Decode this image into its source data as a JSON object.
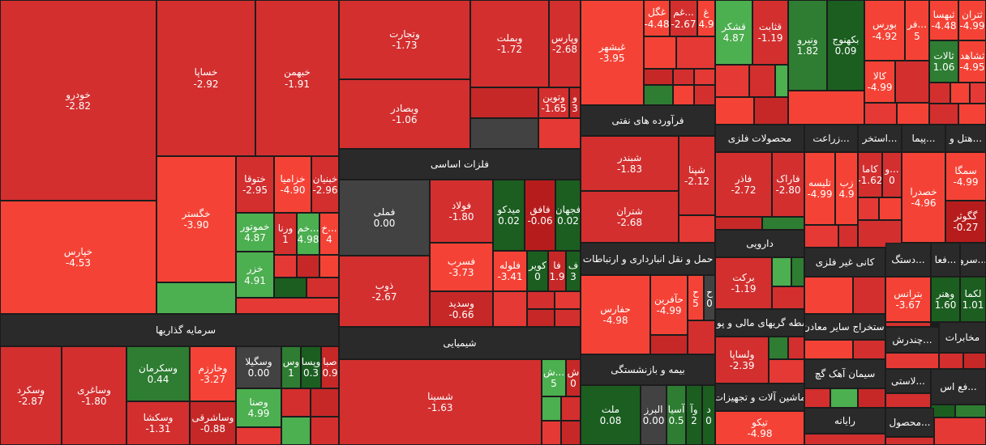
{
  "colors": {
    "deep_red": "#c62828",
    "red": "#d32f2f",
    "light_red": "#f44336",
    "pale_red": "#e53935",
    "green": "#4caf50",
    "dark_green": "#1b5e20",
    "mid_green": "#2e7d32",
    "neutral": "#424242",
    "header": "#2a2a2a"
  },
  "sectors": [
    {
      "id": "sec-investment",
      "label": "سرمایه گذاریها"
    },
    {
      "id": "sec-basic-metals",
      "label": "فلزات اساسی"
    },
    {
      "id": "sec-chemical",
      "label": "شیمیایی"
    },
    {
      "id": "sec-oil-products",
      "label": "فرآورده های نفتی"
    },
    {
      "id": "sec-transport",
      "label": "حمل و نقل انبارداری و ارتباطات"
    },
    {
      "id": "sec-insurance",
      "label": "بیمه و بازنشستگی"
    },
    {
      "id": "sec-pharma",
      "label": "دارویی"
    },
    {
      "id": "sec-finance",
      "label": "سطه گریهای مالی و پول"
    },
    {
      "id": "sec-machinery",
      "label": "ماشین آلات و تجهیزات"
    },
    {
      "id": "sec-metal-products",
      "label": "محصولات فلزی"
    },
    {
      "id": "sec-agri",
      "label": "زراعت..."
    },
    {
      "id": "sec-extraction",
      "label": "استخر..."
    },
    {
      "id": "sec-contract",
      "label": "پیما..."
    },
    {
      "id": "sec-hotel",
      "label": "هتل و..."
    },
    {
      "id": "sec-nonmetal",
      "label": "کانی غیر فلزی"
    },
    {
      "id": "sec-handicraft",
      "label": "دستگ..."
    },
    {
      "id": "sec-activities",
      "label": "فعا..."
    },
    {
      "id": "sec-services",
      "label": "سرو..."
    },
    {
      "id": "sec-other-mining",
      "label": "استخراج سایر معادن"
    },
    {
      "id": "sec-cement",
      "label": "سیمان آهک گچ"
    },
    {
      "id": "sec-multi",
      "label": "چندرش..."
    },
    {
      "id": "sec-telecom",
      "label": "مخابرات"
    },
    {
      "id": "sec-computer",
      "label": "رایانه"
    },
    {
      "id": "sec-tire",
      "label": "لاستی..."
    },
    {
      "id": "sec-fe",
      "label": "فع اس..."
    },
    {
      "id": "sec-product",
      "label": "محصول..."
    }
  ],
  "tiles": [
    {
      "id": "khodro",
      "name": "خودرو",
      "value": "-2.82",
      "c": "red"
    },
    {
      "id": "khesapa",
      "name": "خساپا",
      "value": "-2.92",
      "c": "red"
    },
    {
      "id": "khbahman",
      "name": "خبهمن",
      "value": "-1.91",
      "c": "red"
    },
    {
      "id": "khepars",
      "name": "خپارس",
      "value": "-4.53",
      "c": "light_red"
    },
    {
      "id": "khgostar",
      "name": "خگستر",
      "value": "-3.90",
      "c": "light_red"
    },
    {
      "id": "khtoga",
      "name": "ختوقا",
      "value": "-2.95",
      "c": "red"
    },
    {
      "id": "khzamia",
      "name": "خزامیا",
      "value": "-4.90",
      "c": "light_red"
    },
    {
      "id": "khbonyan",
      "name": "خبنیان",
      "value": "-2.96",
      "c": "red"
    },
    {
      "id": "khmotor",
      "name": "خموتور",
      "value": "4.87",
      "c": "green"
    },
    {
      "id": "varna",
      "name": "ورنا",
      "value": "1",
      "c": "red"
    },
    {
      "id": "khm",
      "name": "خم...",
      "value": "4.98",
      "c": "green"
    },
    {
      "id": "kh2",
      "name": "خ...",
      "value": "4",
      "c": "light_red"
    },
    {
      "id": "khzar",
      "name": "خزر",
      "value": "4.91",
      "c": "green"
    },
    {
      "id": "vtejarat",
      "name": "وتجارت",
      "value": "-1.73",
      "c": "red"
    },
    {
      "id": "vbemellat",
      "name": "وبملت",
      "value": "-1.72",
      "c": "red"
    },
    {
      "id": "vpars",
      "name": "وپارس",
      "value": "-2.68",
      "c": "red"
    },
    {
      "id": "vbsader",
      "name": "وبصادر",
      "value": "-1.06",
      "c": "red"
    },
    {
      "id": "vtoyan",
      "name": "وتوین",
      "value": "-1.65",
      "c": "red"
    },
    {
      "id": "vsmall",
      "name": "و",
      "value": "3",
      "c": "red"
    },
    {
      "id": "gheghal",
      "name": "غگل",
      "value": "-4.48",
      "c": "light_red"
    },
    {
      "id": "gham",
      "name": "غم...",
      "value": "-2.67",
      "c": "red"
    },
    {
      "id": "ghsmall",
      "name": "غ",
      "value": "4.9",
      "c": "light_red"
    },
    {
      "id": "ghbeshar",
      "name": "غبشهر",
      "value": "-3.95",
      "c": "light_red"
    },
    {
      "id": "ghshekar",
      "name": "قشکر",
      "value": "4.87",
      "c": "green"
    },
    {
      "id": "gsabet",
      "name": "قثابت",
      "value": "-1.19",
      "c": "red"
    },
    {
      "id": "vnirou",
      "name": "ونیرو",
      "value": "1.82",
      "c": "mid_green"
    },
    {
      "id": "bkahnouj",
      "name": "بکهنوج",
      "value": "0.09",
      "c": "dark_green"
    },
    {
      "id": "bours",
      "name": "بورس",
      "value": "-4.92",
      "c": "light_red"
    },
    {
      "id": "far",
      "name": "فر...",
      "value": "5",
      "c": "light_red"
    },
    {
      "id": "tbahsa",
      "name": "ثبهسا",
      "value": "-4.48",
      "c": "light_red"
    },
    {
      "id": "seran",
      "name": "ثتران",
      "value": "-4.99",
      "c": "light_red"
    },
    {
      "id": "salat",
      "name": "ثالات",
      "value": "1.06",
      "c": "mid_green"
    },
    {
      "id": "shahed",
      "name": "ثشاهد",
      "value": "-4.95",
      "c": "light_red"
    },
    {
      "id": "kala",
      "name": "کالا",
      "value": "-4.99",
      "c": "light_red"
    },
    {
      "id": "sheb",
      "name": "شبندر",
      "value": "-1.83",
      "c": "red"
    },
    {
      "id": "shpna",
      "name": "شپنا",
      "value": "-2.12",
      "c": "red"
    },
    {
      "id": "shtran",
      "name": "شتران",
      "value": "-2.68",
      "c": "red"
    },
    {
      "id": "foolad",
      "name": "فولاد",
      "value": "-1.80",
      "c": "red"
    },
    {
      "id": "meedko",
      "name": "میدکو",
      "value": "0.02",
      "c": "dark_green"
    },
    {
      "id": "fanfagh",
      "name": "فافق",
      "value": "-0.06",
      "c": "deep_red"
    },
    {
      "id": "fjahan",
      "name": "فجهان",
      "value": "0.02",
      "c": "dark_green"
    },
    {
      "id": "fameli",
      "name": "فملی",
      "value": "0.00",
      "c": "neutral"
    },
    {
      "id": "fasrb",
      "name": "فسرب",
      "value": "-3.73",
      "c": "light_red"
    },
    {
      "id": "folouleh",
      "name": "فلوله",
      "value": "-3.41",
      "c": "light_red"
    },
    {
      "id": "kavir",
      "name": "کویر",
      "value": "0",
      "c": "dark_green"
    },
    {
      "id": "fa",
      "name": "فا",
      "value": "1.9",
      "c": "mid_green"
    },
    {
      "id": "f3",
      "name": "ف",
      "value": "3",
      "c": "dark_green"
    },
    {
      "id": "zob",
      "name": "ذوب",
      "value": "-2.67",
      "c": "red"
    },
    {
      "id": "vsadid",
      "name": "وسدید",
      "value": "-0.66",
      "c": "deep_red"
    },
    {
      "id": "shasina",
      "name": "شسینا",
      "value": "-1.63",
      "c": "red"
    },
    {
      "id": "shsh",
      "name": "ش...",
      "value": "5",
      "c": "green"
    },
    {
      "id": "sh0",
      "name": "ش",
      "value": "0",
      "c": "deep_red"
    },
    {
      "id": "hafars",
      "name": "حفارس",
      "value": "-4.98",
      "c": "light_red"
    },
    {
      "id": "hamfarin",
      "name": "حآفرین",
      "value": "-4.99",
      "c": "light_red"
    },
    {
      "id": "h5",
      "name": "ح",
      "value": "5",
      "c": "light_red"
    },
    {
      "id": "h0",
      "name": "ح",
      "value": "0",
      "c": "neutral"
    },
    {
      "id": "mellat",
      "name": "ملت",
      "value": "0.08",
      "c": "dark_green"
    },
    {
      "id": "alborz",
      "name": "البرز",
      "value": "0.00",
      "c": "neutral"
    },
    {
      "id": "asia",
      "name": "آسیا",
      "value": "0.5",
      "c": "mid_green"
    },
    {
      "id": "va2",
      "name": "وآ",
      "value": "2",
      "c": "dark_green"
    },
    {
      "id": "d0",
      "name": "د",
      "value": "0",
      "c": "dark_green"
    },
    {
      "id": "vskord",
      "name": "وسکرد",
      "value": "-2.87",
      "c": "red"
    },
    {
      "id": "vsaghari",
      "name": "وساغری",
      "value": "-1.80",
      "c": "red"
    },
    {
      "id": "vskerman",
      "name": "وسکرمان",
      "value": "0.44",
      "c": "dark_green"
    },
    {
      "id": "vkharzam",
      "name": "وخارزم",
      "value": "-3.27",
      "c": "light_red"
    },
    {
      "id": "vsgila",
      "name": "وسگیلا",
      "value": "0.00",
      "c": "neutral"
    },
    {
      "id": "vs1",
      "name": "وس",
      "value": "1",
      "c": "dark_green"
    },
    {
      "id": "vpsa",
      "name": "وپسا",
      "value": "0.3",
      "c": "dark_green"
    },
    {
      "id": "sba",
      "name": "صبا",
      "value": "0.9",
      "c": "light_red"
    },
    {
      "id": "vskasha",
      "name": "وسکشا",
      "value": "-1.31",
      "c": "red"
    },
    {
      "id": "vsasharghi",
      "name": "وساشرقی",
      "value": "-0.88",
      "c": "deep_red"
    },
    {
      "id": "vsana",
      "name": "وصنا",
      "value": "4.99",
      "c": "green"
    },
    {
      "id": "barkat",
      "name": "برکت",
      "value": "-1.19",
      "c": "red"
    },
    {
      "id": "vsalpa",
      "name": "ولساپا",
      "value": "-2.39",
      "c": "red"
    },
    {
      "id": "tikko",
      "name": "تیکو",
      "value": "-4.98",
      "c": "light_red"
    },
    {
      "id": "fazar",
      "name": "فاذر",
      "value": "-2.72",
      "c": "red"
    },
    {
      "id": "farak",
      "name": "فاراک",
      "value": "-2.80",
      "c": "red"
    },
    {
      "id": "talise",
      "name": "تلیسه",
      "value": "-4.99",
      "c": "light_red"
    },
    {
      "id": "zab",
      "name": "زب",
      "value": "4.9",
      "c": "light_red"
    },
    {
      "id": "kama",
      "name": "کاما",
      "value": "-1.62",
      "c": "red"
    },
    {
      "id": "v0",
      "name": "و...",
      "value": "0",
      "c": "red"
    },
    {
      "id": "khsadra",
      "name": "خصدرا",
      "value": "-4.96",
      "c": "light_red"
    },
    {
      "id": "semga",
      "name": "سمگا",
      "value": "-4.99",
      "c": "light_red"
    },
    {
      "id": "ggoshar",
      "name": "گگوثر",
      "value": "-0.27",
      "c": "deep_red"
    },
    {
      "id": "betrans",
      "name": "بترانس",
      "value": "-3.67",
      "c": "light_red"
    },
    {
      "id": "vahenr",
      "name": "وهنر",
      "value": "1.60",
      "c": "dark_green"
    },
    {
      "id": "lekma",
      "name": "لکما",
      "value": "1.01",
      "c": "dark_green"
    }
  ]
}
